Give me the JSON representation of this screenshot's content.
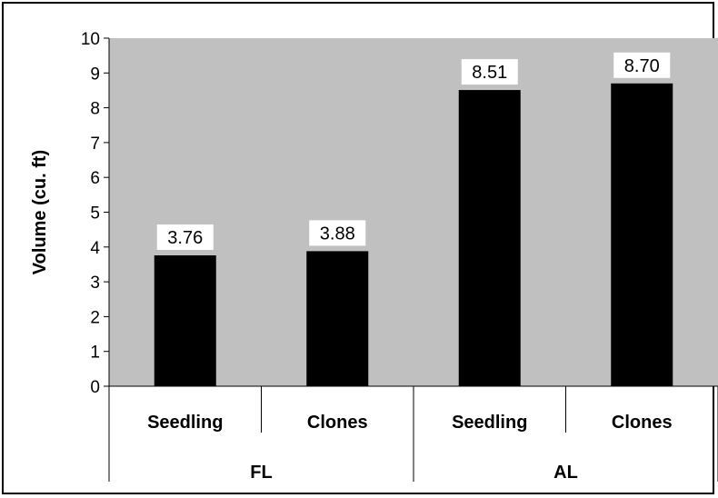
{
  "chart_data": {
    "type": "bar",
    "ylabel": "Volume (cu. ft)",
    "ylim": [
      0,
      10
    ],
    "yticks": [
      0,
      1,
      2,
      3,
      4,
      5,
      6,
      7,
      8,
      9,
      10
    ],
    "grid": false,
    "legend": "none",
    "categories": [
      "Seedling",
      "Clones",
      "Seedling",
      "Clones"
    ],
    "groups": [
      {
        "name": "FL",
        "span": [
          0,
          1
        ]
      },
      {
        "name": "AL",
        "span": [
          2,
          3
        ]
      }
    ],
    "values": [
      3.76,
      3.88,
      8.51,
      8.7
    ],
    "data_labels": [
      "3.76",
      "3.88",
      "8.51",
      "8.70"
    ],
    "colors": {
      "plot_bg": "#c0c0c0",
      "bar": "#000000",
      "label_bg": "#ffffff"
    }
  }
}
